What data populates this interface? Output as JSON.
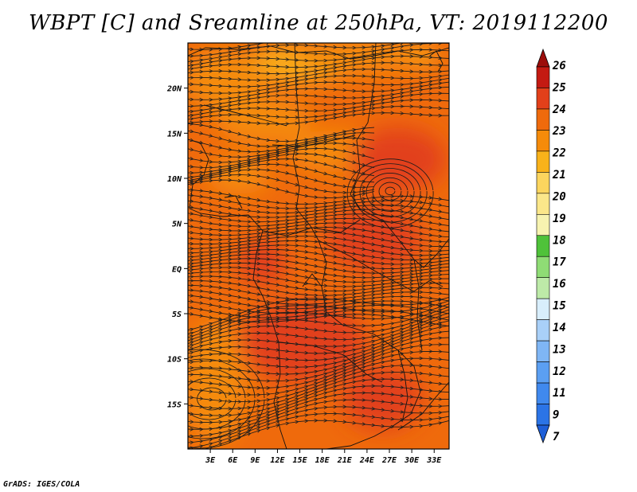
{
  "chart_data": {
    "type": "heatmap",
    "title": "WBPT [C] and Sreamline at 250hPa, VT: 2019112200",
    "xlabel": "",
    "ylabel": "",
    "x_ticks": [
      "3E",
      "6E",
      "9E",
      "12E",
      "15E",
      "18E",
      "21E",
      "24E",
      "27E",
      "30E",
      "33E"
    ],
    "y_ticks": [
      "20N",
      "15N",
      "10N",
      "5N",
      "EQ",
      "5S",
      "10S",
      "15S"
    ],
    "xlim_degE": [
      0,
      35
    ],
    "ylim_degN": [
      -20,
      25
    ],
    "colorbar": {
      "levels": [
        "7",
        "9",
        "11",
        "12",
        "13",
        "14",
        "15",
        "16",
        "17",
        "18",
        "19",
        "20",
        "21",
        "22",
        "23",
        "24",
        "25",
        "26"
      ],
      "colors": [
        "#1e5fd8",
        "#2b74e6",
        "#4089ee",
        "#5b9ff2",
        "#7fb6f5",
        "#a9d0f8",
        "#d8eefc",
        "#bdeaa8",
        "#8fdc75",
        "#4fc23a",
        "#f7f3b0",
        "#fbe78a",
        "#fcd55e",
        "#f9b21a",
        "#f58b0a",
        "#ef6a0c",
        "#e2401a",
        "#c41a12",
        "#9c0d0a"
      ]
    },
    "field_colors": {
      "main": "#ef6a0c",
      "warm": "#e2401a",
      "cool": "#f58b0a",
      "coolest": "#f9b21a"
    },
    "overlay": "streamlines (250hPa wind)"
  },
  "footer": "GrADS: IGES/COLA"
}
